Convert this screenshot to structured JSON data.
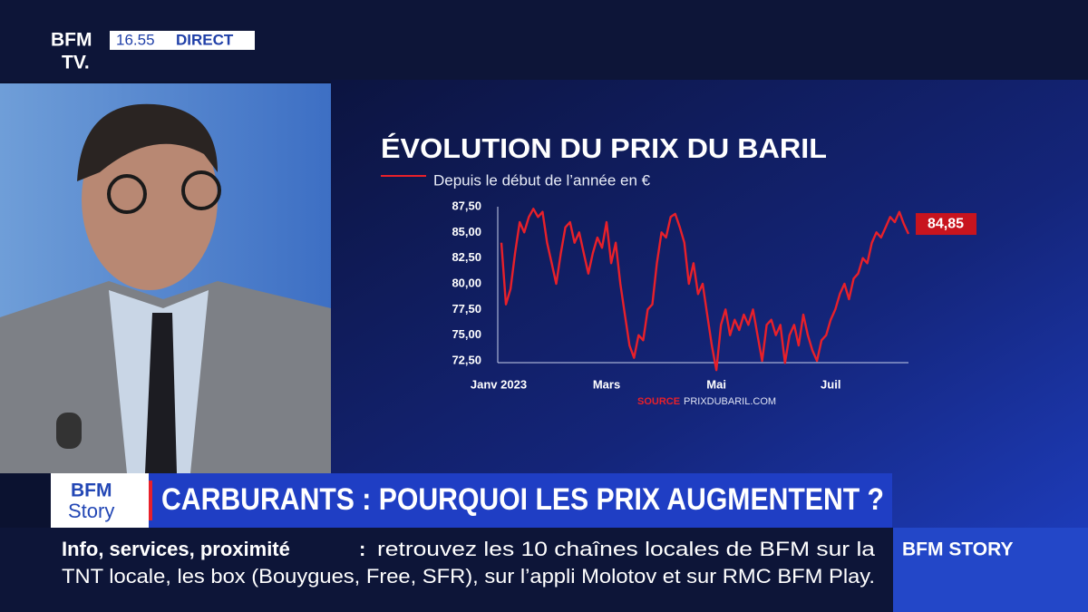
{
  "header": {
    "logo_top": "BFM",
    "logo_bottom": "TV.",
    "time": "16.55",
    "live": "DIRECT"
  },
  "chart_data": {
    "type": "line",
    "title": "ÉVOLUTION DU PRIX DU BARIL",
    "subtitle": "Depuis le début de l’année en €",
    "color": "#e8202a",
    "categories": [
      "Janv 2023",
      null,
      null,
      null,
      null,
      null,
      null,
      null,
      null,
      null,
      null,
      null,
      null,
      null,
      null,
      null,
      null,
      null,
      null,
      null,
      null,
      null,
      null,
      "Mars",
      null,
      null,
      null,
      null,
      null,
      null,
      null,
      null,
      null,
      null,
      null,
      null,
      null,
      null,
      null,
      null,
      null,
      null,
      null,
      null,
      null,
      null,
      null,
      "Mai",
      null,
      null,
      null,
      null,
      null,
      null,
      null,
      null,
      null,
      null,
      null,
      null,
      null,
      null,
      null,
      null,
      null,
      null,
      null,
      null,
      null,
      null,
      null,
      null,
      "Juil",
      null,
      null,
      null,
      null,
      null,
      null,
      null,
      null,
      null,
      null,
      null,
      null,
      null,
      null,
      null,
      null,
      null
    ],
    "values": [
      84,
      78,
      79.5,
      83,
      86,
      85,
      86.5,
      87.3,
      86.5,
      87,
      84,
      82,
      80,
      83,
      85.5,
      86,
      84,
      85,
      83,
      81,
      83,
      84.5,
      83.5,
      86,
      82,
      84,
      80,
      77,
      74,
      72.8,
      75,
      74.5,
      77.5,
      78,
      82,
      85,
      84.5,
      86.5,
      86.8,
      85.5,
      84,
      80,
      82,
      79,
      80,
      77,
      74,
      71.6,
      76,
      77.5,
      75,
      76.5,
      75.5,
      77,
      76,
      77.5,
      75,
      72.5,
      76,
      76.5,
      75,
      76,
      72.3,
      75,
      76,
      74,
      77,
      75,
      73.5,
      72.5,
      74.5,
      75,
      76.5,
      77.5,
      79,
      80,
      78.5,
      80.5,
      81,
      82.5,
      82,
      84,
      85,
      84.5,
      85.5,
      86.5,
      86,
      87,
      85.8,
      84.85
    ],
    "value_labels": [
      null,
      null,
      null,
      null,
      null,
      null,
      null,
      null,
      null,
      null,
      null,
      null,
      null,
      null,
      null,
      null,
      null,
      null,
      null,
      null,
      null,
      null,
      null,
      null,
      null,
      null,
      null,
      null,
      null,
      null,
      null,
      null,
      null,
      null,
      null,
      null,
      null,
      null,
      null,
      null,
      null,
      null,
      null,
      null,
      null,
      null,
      null,
      null,
      null,
      null,
      null,
      null,
      null,
      null,
      null,
      null,
      null,
      null,
      null,
      null,
      null,
      null,
      null,
      null,
      null,
      null,
      null,
      null,
      null,
      null,
      null,
      null,
      null,
      null,
      null,
      null,
      null,
      null,
      null,
      null,
      null,
      null,
      null,
      null,
      null,
      null,
      null,
      null,
      null,
      "84,85"
    ],
    "ylim": [
      72.5,
      87.5
    ],
    "yticks": [
      {
        "value": 72.5,
        "label": "72,50"
      },
      {
        "value": 75,
        "label": "75,00"
      },
      {
        "value": 77.5,
        "label": "77,50"
      },
      {
        "value": 80,
        "label": "80,00"
      },
      {
        "value": 82.5,
        "label": "82,50"
      },
      {
        "value": 85,
        "label": "85,00"
      },
      {
        "value": 87.5,
        "label": "87,50"
      }
    ],
    "grid": false,
    "source_label": "SOURCE",
    "source": "PRIXDUBARIL.COM"
  },
  "banner": {
    "logo_top": "BFM",
    "logo_bottom": "Story",
    "headline": "CARBURANTS : POURQUOI LES PRIX AUGMENTENT ?"
  },
  "ticker": {
    "lead": "Info, services, proximité",
    "separator": ":",
    "line1": "retrouvez les 10 chaînes locales de BFM sur la",
    "line2": "TNT locale, les box (Bouygues, Free, SFR), sur l’appli Molotov et sur RMC BFM Play.",
    "channel": "BFM STORY"
  }
}
